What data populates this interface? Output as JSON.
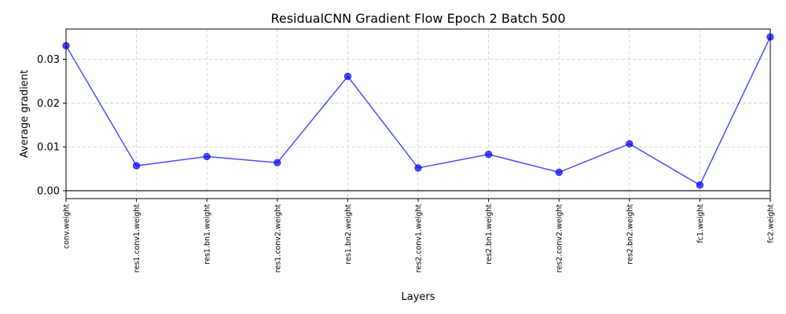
{
  "chart_data": {
    "type": "line",
    "title": "ResidualCNN Gradient Flow Epoch 2 Batch 500",
    "xlabel": "Layers",
    "ylabel": "Average gradient",
    "categories": [
      "conv.weight",
      "res1.conv1.weight",
      "res1.bn1.weight",
      "res1.conv2.weight",
      "res1.bn2.weight",
      "res2.conv1.weight",
      "res2.bn1.weight",
      "res2.conv2.weight",
      "res2.bn2.weight",
      "fc1.weight",
      "fc2.weight"
    ],
    "series": [
      {
        "values": [
          0.0331,
          0.0057,
          0.0078,
          0.0064,
          0.0261,
          0.0052,
          0.0083,
          0.0042,
          0.0107,
          0.0013,
          0.0351
        ],
        "color": "#0000ff"
      }
    ],
    "ylim": [
      -0.0018,
      0.0369
    ],
    "yticks": [
      0.0,
      0.01,
      0.02,
      0.03
    ],
    "ytick_labels": [
      "0.00",
      "0.01",
      "0.02",
      "0.03"
    ],
    "grid": true,
    "hline": 0
  }
}
